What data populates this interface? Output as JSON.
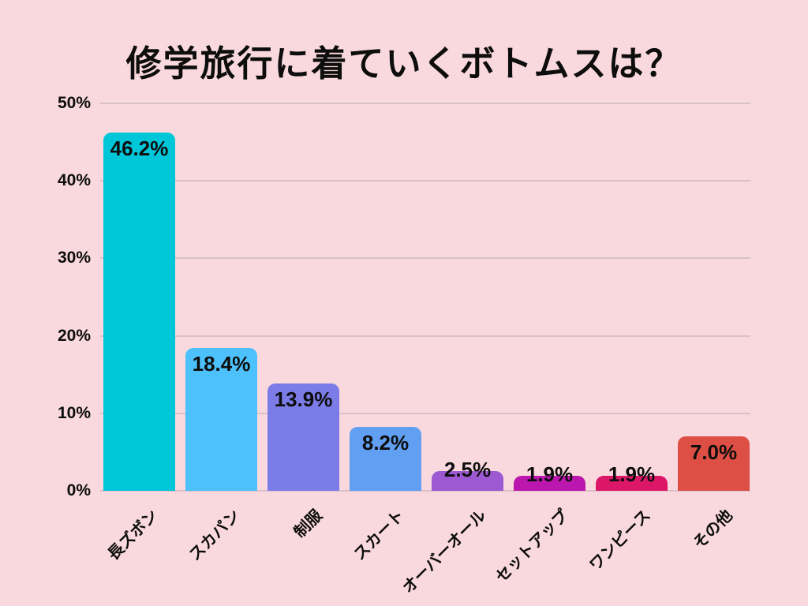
{
  "page": {
    "background_color": "#f9d9de"
  },
  "chart_data": {
    "type": "bar",
    "title": "修学旅行に着ていくボトムスは？",
    "categories": [
      "長ズボン",
      "スカパン",
      "制服",
      "スカート",
      "オーバーオール",
      "セットアップ",
      "ワンピース",
      "その他"
    ],
    "values": [
      46.2,
      18.4,
      13.9,
      8.2,
      2.5,
      1.9,
      1.9,
      7.0
    ],
    "value_labels": [
      "46.2%",
      "18.4%",
      "13.9%",
      "8.2%",
      "2.5%",
      "1.9%",
      "1.9%",
      "7.0%"
    ],
    "bar_colors": [
      "#00c6d9",
      "#4cc1fb",
      "#7b7ce8",
      "#609ff2",
      "#9c59d1",
      "#bb16ad",
      "#dc1767",
      "#dd4f44"
    ],
    "xlabel": "",
    "ylabel": "",
    "ylim": [
      0,
      50
    ],
    "yticks": [
      0,
      10,
      20,
      30,
      40,
      50
    ],
    "ytick_labels": [
      "0%",
      "10%",
      "20%",
      "30%",
      "40%",
      "50%"
    ],
    "grid": true,
    "legend": "none",
    "gridline_color": "#d8c1c8",
    "text_color": "#0d0d0d"
  }
}
